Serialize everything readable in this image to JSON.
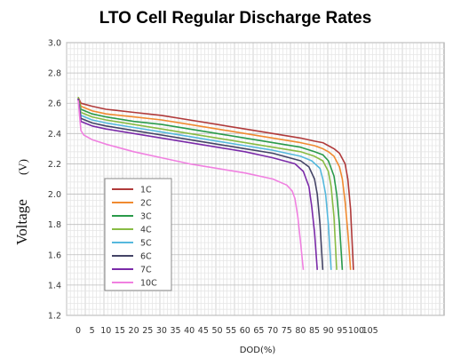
{
  "chart_data": {
    "type": "line",
    "title": "LTO Cell Regular Discharge Rates",
    "xlabel": "DOD(%)",
    "ylabel": "Voltage",
    "ylabel_unit": "(V)",
    "xlim": [
      0,
      100
    ],
    "ylim": [
      1.2,
      3.0
    ],
    "xticks": [
      "0",
      "5",
      "10",
      "15",
      "20",
      "25",
      "30",
      "35",
      "40",
      "45",
      "50",
      "55",
      "60",
      "65",
      "70",
      "75",
      "80",
      "85",
      "90",
      "95",
      "100",
      "105"
    ],
    "yticks": [
      "1.2",
      "1.4",
      "1.6",
      "1.8",
      "2.0",
      "2.2",
      "2.4",
      "2.6",
      "2.8",
      "3.0"
    ],
    "grid": true,
    "legend_position": "lower-left",
    "series": [
      {
        "name": "1C",
        "color": "#b03a3a",
        "x": [
          0,
          1,
          5,
          10,
          20,
          30,
          40,
          50,
          60,
          70,
          80,
          85,
          88,
          90,
          92,
          94,
          96,
          97,
          98,
          99
        ],
        "y": [
          2.64,
          2.6,
          2.58,
          2.56,
          2.54,
          2.52,
          2.49,
          2.46,
          2.43,
          2.4,
          2.37,
          2.35,
          2.34,
          2.32,
          2.3,
          2.27,
          2.2,
          2.1,
          1.9,
          1.5
        ]
      },
      {
        "name": "2C",
        "color": "#f08a30",
        "x": [
          0,
          1,
          5,
          10,
          20,
          30,
          40,
          50,
          60,
          70,
          80,
          85,
          88,
          90,
          92,
          94,
          95,
          96,
          97,
          98
        ],
        "y": [
          2.64,
          2.58,
          2.55,
          2.53,
          2.51,
          2.49,
          2.46,
          2.43,
          2.4,
          2.37,
          2.34,
          2.32,
          2.3,
          2.28,
          2.25,
          2.18,
          2.1,
          1.95,
          1.75,
          1.5
        ]
      },
      {
        "name": "3C",
        "color": "#2a9a4a",
        "x": [
          0,
          1,
          5,
          10,
          20,
          30,
          40,
          50,
          60,
          70,
          80,
          85,
          88,
          90,
          92,
          93,
          94,
          95
        ],
        "y": [
          2.64,
          2.56,
          2.53,
          2.51,
          2.48,
          2.46,
          2.43,
          2.4,
          2.37,
          2.34,
          2.31,
          2.28,
          2.26,
          2.22,
          2.12,
          2.0,
          1.8,
          1.5
        ]
      },
      {
        "name": "4C",
        "color": "#88bb44",
        "x": [
          0,
          1,
          5,
          10,
          20,
          30,
          40,
          50,
          60,
          70,
          80,
          85,
          88,
          90,
          91,
          92,
          93
        ],
        "y": [
          2.64,
          2.54,
          2.51,
          2.49,
          2.46,
          2.43,
          2.4,
          2.37,
          2.34,
          2.31,
          2.28,
          2.25,
          2.22,
          2.15,
          2.05,
          1.85,
          1.5
        ]
      },
      {
        "name": "5C",
        "color": "#55b8dd",
        "x": [
          0,
          1,
          5,
          10,
          20,
          30,
          40,
          50,
          60,
          70,
          80,
          84,
          87,
          88,
          89,
          90,
          91
        ],
        "y": [
          2.63,
          2.52,
          2.49,
          2.47,
          2.44,
          2.41,
          2.38,
          2.35,
          2.32,
          2.29,
          2.25,
          2.22,
          2.17,
          2.1,
          2.0,
          1.8,
          1.5
        ]
      },
      {
        "name": "6C",
        "color": "#444466",
        "x": [
          0,
          1,
          5,
          10,
          20,
          30,
          40,
          50,
          60,
          70,
          80,
          83,
          85,
          86,
          87,
          88
        ],
        "y": [
          2.63,
          2.5,
          2.47,
          2.45,
          2.42,
          2.39,
          2.36,
          2.33,
          2.3,
          2.27,
          2.22,
          2.18,
          2.1,
          2.0,
          1.8,
          1.5
        ]
      },
      {
        "name": "7C",
        "color": "#7a2aa8",
        "x": [
          0,
          1,
          5,
          10,
          20,
          30,
          40,
          50,
          60,
          70,
          78,
          81,
          83,
          84,
          85,
          86
        ],
        "y": [
          2.63,
          2.48,
          2.45,
          2.43,
          2.4,
          2.37,
          2.34,
          2.31,
          2.28,
          2.24,
          2.2,
          2.15,
          2.05,
          1.92,
          1.75,
          1.5
        ]
      },
      {
        "name": "10C",
        "color": "#f080e0",
        "x": [
          0,
          1,
          2,
          5,
          10,
          20,
          30,
          40,
          50,
          60,
          70,
          75,
          77,
          78,
          79,
          80,
          81
        ],
        "y": [
          2.62,
          2.42,
          2.39,
          2.36,
          2.33,
          2.28,
          2.24,
          2.2,
          2.17,
          2.14,
          2.1,
          2.06,
          2.02,
          1.97,
          1.85,
          1.68,
          1.5
        ]
      }
    ]
  }
}
